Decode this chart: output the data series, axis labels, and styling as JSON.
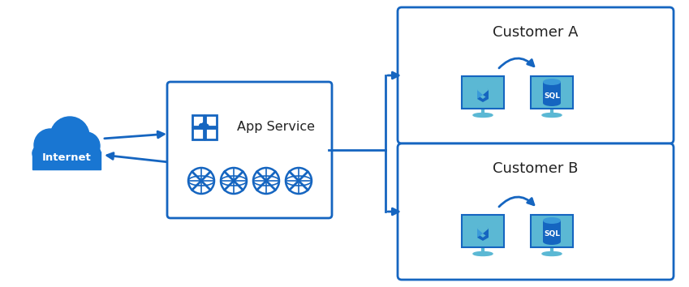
{
  "background_color": "#ffffff",
  "border_color": "#1565C0",
  "arrow_color": "#1565C0",
  "cloud_color": "#1976D2",
  "icon_fill": "#5BB8D4",
  "icon_dark": "#1565C0",
  "cloud_text": "Internet",
  "appservice_label": "App Service",
  "customer_a_label": "Customer A",
  "customer_b_label": "Customer B",
  "figsize": [
    8.49,
    3.54
  ],
  "dpi": 100
}
